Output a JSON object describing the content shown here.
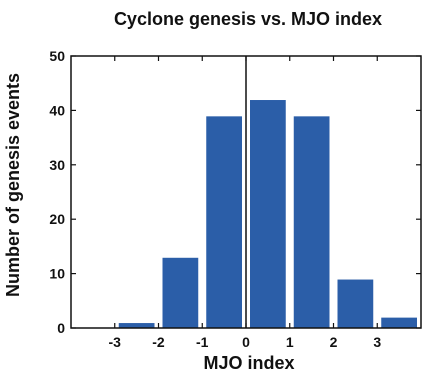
{
  "chart_data": {
    "type": "bar",
    "title": "Cyclone genesis vs. MJO index",
    "xlabel": "MJO index",
    "ylabel": "Number of genesis events",
    "x": [
      -2.5,
      -1.5,
      -0.5,
      0.5,
      1.5,
      2.5,
      3.5
    ],
    "values": [
      1,
      13,
      39,
      42,
      39,
      9,
      2
    ],
    "xlim": [
      -4,
      4
    ],
    "ylim": [
      0,
      50
    ],
    "xticks": [
      -3,
      -2,
      -1,
      0,
      1,
      2,
      3
    ],
    "yticks": [
      0,
      10,
      20,
      30,
      40,
      50
    ],
    "bar_color": "#2b5ea8",
    "zero_line": 0,
    "grid": false
  }
}
